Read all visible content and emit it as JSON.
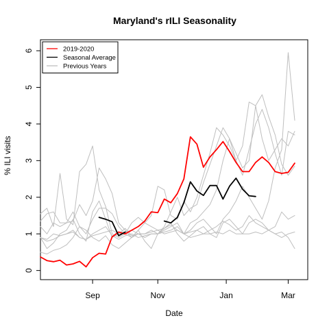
{
  "chart_data": {
    "type": "line",
    "title": "Maryland's rILI Seasonality",
    "xlabel": "Date",
    "ylabel": "% ILI visits",
    "x_ticks": [
      {
        "label": "Sep",
        "x": 8
      },
      {
        "label": "Nov",
        "x": 18
      },
      {
        "label": "Jan",
        "x": 28.5
      },
      {
        "label": "Mar",
        "x": 38
      }
    ],
    "y_ticks": [
      0,
      1,
      2,
      3,
      4,
      5,
      6
    ],
    "xlim": [
      0,
      41
    ],
    "ylim": [
      -0.25,
      6.3
    ],
    "legend": {
      "position": "top-left",
      "entries": [
        {
          "label": "2019-2020",
          "color": "#ff0000"
        },
        {
          "label": "Seasonal Average",
          "color": "#000000"
        },
        {
          "label": "Previous Years",
          "color": "#bebebe"
        }
      ]
    },
    "series": [
      {
        "color": "#bebebe",
        "width": 1,
        "x": [
          0,
          1,
          2,
          3,
          4,
          5,
          6,
          7,
          8,
          9,
          10,
          11,
          12,
          13,
          14,
          15,
          16,
          17,
          18,
          19,
          20,
          21,
          22,
          23,
          24,
          25,
          26,
          27,
          28,
          29,
          30,
          31,
          32,
          33,
          34,
          35,
          36,
          37,
          38,
          39
        ],
        "y": [
          1.55,
          1.7,
          1.2,
          2.65,
          1.4,
          1.25,
          2.7,
          2.9,
          3.4,
          2.2,
          1.75,
          1.0,
          0.9,
          1.0,
          1.3,
          1.45,
          1.3,
          1.2,
          1.1,
          1.15,
          1.25,
          1.1,
          1.0,
          1.3,
          1.4,
          1.6,
          1.8,
          2.2,
          3.0,
          3.6,
          3.2,
          2.8,
          3.0,
          4.5,
          4.8,
          4.2,
          3.7,
          2.9,
          2.6,
          2.85
        ]
      },
      {
        "color": "#bebebe",
        "width": 1,
        "x": [
          0,
          1,
          2,
          3,
          4,
          5,
          6,
          7,
          8,
          9,
          10,
          11,
          12,
          13,
          14,
          15,
          16,
          17,
          18,
          19,
          20,
          21,
          22,
          23,
          24,
          25,
          26,
          27,
          28,
          29,
          30,
          31,
          32,
          33,
          34,
          35,
          36,
          37,
          38,
          39
        ],
        "y": [
          1.35,
          1.55,
          1.6,
          1.3,
          1.3,
          1.35,
          1.8,
          1.5,
          1.9,
          2.8,
          2.5,
          2.1,
          1.3,
          1.1,
          0.9,
          1.1,
          1.3,
          1.5,
          2.3,
          2.2,
          1.5,
          1.4,
          1.9,
          1.6,
          2.0,
          2.6,
          3.2,
          3.9,
          3.7,
          3.4,
          3.0,
          2.6,
          3.3,
          4.0,
          4.4,
          3.9,
          3.2,
          2.6,
          3.8,
          3.7
        ]
      },
      {
        "color": "#bebebe",
        "width": 1,
        "x": [
          0,
          1,
          2,
          3,
          4,
          5,
          6,
          7,
          8,
          9,
          10,
          11,
          12,
          13,
          14,
          15,
          16,
          17,
          18,
          19,
          20,
          21,
          22,
          23,
          24,
          25,
          26,
          27,
          28,
          29,
          30,
          31,
          32,
          33,
          34,
          35,
          36,
          37,
          38,
          39
        ],
        "y": [
          1.2,
          1.0,
          1.3,
          1.2,
          1.3,
          1.6,
          1.2,
          1.0,
          1.4,
          1.7,
          1.7,
          1.55,
          1.2,
          1.0,
          0.9,
          1.0,
          1.0,
          1.1,
          1.0,
          1.2,
          1.6,
          2.0,
          1.5,
          1.7,
          1.8,
          2.4,
          2.9,
          3.4,
          3.9,
          3.6,
          3.0,
          3.4,
          4.6,
          4.5,
          3.6,
          3.0,
          3.3,
          3.6,
          3.4,
          3.8
        ]
      },
      {
        "color": "#bebebe",
        "width": 1,
        "x": [
          0,
          1,
          2,
          3,
          4,
          5,
          6,
          7,
          8,
          9,
          10,
          11,
          12,
          13,
          14,
          15,
          16,
          17,
          18,
          19,
          20,
          21,
          22,
          23,
          24,
          25,
          26,
          27,
          28,
          29,
          30,
          31,
          32,
          33,
          34,
          35,
          36,
          37,
          38,
          39
        ],
        "y": [
          0.9,
          0.6,
          0.75,
          1.0,
          1.1,
          1.4,
          1.0,
          0.8,
          1.6,
          1.9,
          1.4,
          0.9,
          1.0,
          1.15,
          0.95,
          1.0,
          0.9,
          1.0,
          1.0,
          1.1,
          1.2,
          1.3,
          1.0,
          1.1,
          1.3,
          1.4,
          1.2,
          1.0,
          1.4,
          1.6,
          1.9,
          2.3,
          2.0,
          1.7,
          1.4,
          1.9,
          2.8,
          3.3,
          5.95,
          4.1
        ]
      },
      {
        "color": "#bebebe",
        "width": 1,
        "x": [
          0,
          1,
          2,
          3,
          4,
          5,
          6,
          7,
          8,
          9,
          10,
          11,
          12,
          13,
          14,
          15,
          16,
          17,
          18,
          19,
          20,
          21,
          22,
          23,
          24,
          25,
          26,
          27,
          28,
          29,
          30,
          31,
          32,
          33,
          34,
          35,
          36,
          37,
          38,
          39
        ],
        "y": [
          0.5,
          0.45,
          0.55,
          0.6,
          0.7,
          0.9,
          1.2,
          1.1,
          0.9,
          0.8,
          0.95,
          0.7,
          0.6,
          0.75,
          0.9,
          1.1,
          0.8,
          0.6,
          1.0,
          1.15,
          1.3,
          1.0,
          0.8,
          0.95,
          1.1,
          1.2,
          1.0,
          0.9,
          1.3,
          1.4,
          1.2,
          1.0,
          1.3,
          1.4,
          1.3,
          1.1,
          1.2,
          1.6,
          1.4,
          1.5
        ]
      },
      {
        "color": "#bebebe",
        "width": 1,
        "x": [
          0,
          1,
          2,
          3,
          4,
          5,
          6,
          7,
          8,
          9,
          10,
          11,
          12,
          13,
          14,
          15,
          16,
          17,
          18,
          19,
          20,
          21,
          22,
          23,
          24,
          25,
          26,
          27,
          28,
          29,
          30,
          31,
          32,
          33,
          34,
          35,
          36,
          37,
          38,
          39
        ],
        "y": [
          0.9,
          0.8,
          0.85,
          0.95,
          1.0,
          1.1,
          0.9,
          0.85,
          1.0,
          1.1,
          1.2,
          0.95,
          0.85,
          0.95,
          1.0,
          0.9,
          0.95,
          1.0,
          1.0,
          1.05,
          1.1,
          1.2,
          1.0,
          0.9,
          0.95,
          1.0,
          1.1,
          1.2,
          1.35,
          1.25,
          1.1,
          1.2,
          1.5,
          1.3,
          1.2,
          1.1,
          1.0,
          0.9,
          1.0,
          1.05
        ]
      },
      {
        "color": "#bebebe",
        "width": 1,
        "x": [
          0,
          1,
          2,
          3,
          4,
          5,
          6,
          7,
          8,
          9,
          10,
          11,
          12,
          13,
          14,
          15,
          16,
          17,
          18,
          19,
          20,
          21,
          22,
          23,
          24,
          25,
          26,
          27,
          28,
          29,
          30,
          31,
          32,
          33,
          34,
          35,
          36,
          37,
          38,
          39
        ],
        "y": [
          0.9,
          0.85,
          1.0,
          0.95,
          1.0,
          1.05,
          0.9,
          0.85,
          0.95,
          1.0,
          1.05,
          1.1,
          1.0,
          1.05,
          1.1,
          1.0,
          1.0,
          1.05,
          1.1,
          1.0,
          1.05,
          1.1,
          1.0,
          1.05,
          1.1,
          1.0,
          1.0,
          1.05,
          1.0,
          1.1,
          1.0,
          1.0,
          1.0,
          1.05,
          1.0,
          1.1,
          1.0,
          1.05,
          0.9,
          0.6
        ]
      },
      {
        "name": "2019-2020",
        "color": "#ff0000",
        "width": 1.8,
        "x": [
          0,
          1,
          2,
          3,
          4,
          5,
          6,
          7,
          8,
          9,
          10,
          11,
          12,
          13,
          14,
          15,
          16,
          17,
          18,
          19,
          20,
          21,
          22,
          23,
          24,
          25,
          26,
          27,
          28,
          29,
          30,
          31,
          32,
          33,
          34,
          35,
          36,
          37,
          38,
          39
        ],
        "y": [
          0.37,
          0.27,
          0.24,
          0.28,
          0.15,
          0.18,
          0.25,
          0.1,
          0.35,
          0.47,
          0.45,
          0.92,
          1.05,
          1.0,
          1.1,
          1.2,
          1.35,
          1.6,
          1.58,
          1.95,
          1.85,
          2.1,
          2.5,
          3.65,
          3.45,
          2.82,
          3.1,
          3.3,
          3.52,
          3.25,
          2.95,
          2.7,
          2.7,
          2.95,
          3.1,
          2.95,
          2.7,
          2.65,
          2.68,
          2.93
        ]
      },
      {
        "name": "Seasonal Average",
        "color": "#000000",
        "width": 1.8,
        "x": [
          9,
          10,
          11,
          12,
          13,
          14,
          15,
          16,
          17,
          18,
          19,
          20,
          21,
          22,
          23,
          24,
          25,
          26,
          27,
          28,
          29,
          30,
          31,
          32,
          33,
          34,
          35,
          36,
          37,
          38,
          39
        ],
        "y": [
          1.45,
          1.4,
          1.33,
          0.95,
          1.05,
          null,
          null,
          null,
          null,
          null,
          1.35,
          1.3,
          1.45,
          1.85,
          2.42,
          2.17,
          2.05,
          2.32,
          2.32,
          1.95,
          2.3,
          2.52,
          2.22,
          2.04,
          2.02,
          null,
          null,
          null,
          null,
          null,
          null
        ]
      }
    ]
  }
}
